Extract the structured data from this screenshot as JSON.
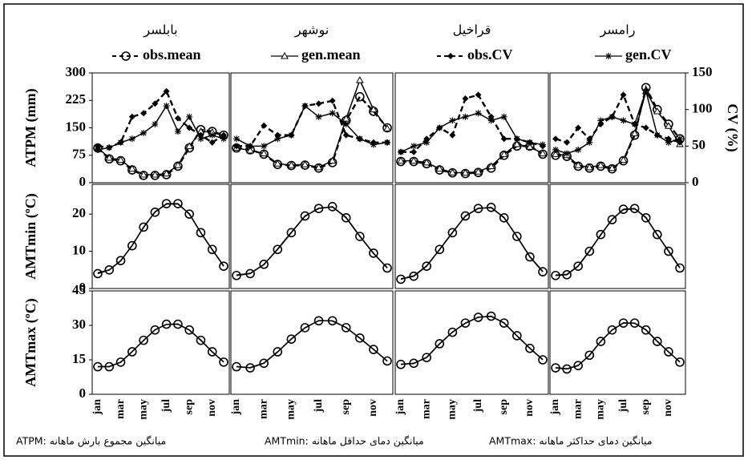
{
  "chart_data": [
    {
      "type": "line",
      "title": "بابلسر",
      "ylabel": "ATPM (mm)",
      "ylim": [
        0,
        300
      ],
      "yticks": [
        0,
        75,
        150,
        225,
        300
      ],
      "y2lim": [
        0,
        150
      ],
      "series": [
        {
          "name": "obs.mean",
          "color": "#000000",
          "marker": "circle",
          "dash": true,
          "values": [
            95,
            65,
            60,
            35,
            20,
            20,
            22,
            45,
            95,
            145,
            140,
            130
          ]
        },
        {
          "name": "gen.mean",
          "color": "#000000",
          "marker": "triangle",
          "dash": false,
          "values": [
            95,
            68,
            62,
            38,
            22,
            22,
            25,
            48,
            100,
            140,
            138,
            128
          ]
        },
        {
          "name": "obs.CV",
          "color": "#000000",
          "marker": "diamond",
          "dash": true,
          "axis": "y2",
          "values": [
            50,
            48,
            55,
            90,
            95,
            108,
            125,
            88,
            75,
            65,
            55,
            65
          ]
        },
        {
          "name": "gen.CV",
          "color": "#000000",
          "marker": "star",
          "dash": false,
          "axis": "y2",
          "values": [
            45,
            48,
            55,
            60,
            68,
            80,
            105,
            70,
            90,
            60,
            65,
            60
          ]
        }
      ]
    },
    {
      "type": "line",
      "title": "نوشهر",
      "ylim": [
        0,
        300
      ],
      "y2lim": [
        0,
        150
      ],
      "series": [
        {
          "color": "#000000",
          "marker": "circle",
          "dash": true,
          "values": [
            95,
            90,
            78,
            50,
            47,
            48,
            40,
            55,
            170,
            235,
            195,
            150
          ]
        },
        {
          "color": "#000000",
          "marker": "triangle",
          "dash": false,
          "values": [
            95,
            88,
            80,
            52,
            48,
            50,
            42,
            60,
            175,
            280,
            200,
            148
          ]
        },
        {
          "color": "#000000",
          "marker": "diamond",
          "dash": true,
          "axis": "y2",
          "values": [
            50,
            50,
            78,
            65,
            65,
            105,
            108,
            112,
            65,
            60,
            55,
            55
          ]
        },
        {
          "color": "#000000",
          "marker": "star",
          "dash": false,
          "axis": "y2",
          "values": [
            60,
            50,
            50,
            60,
            65,
            105,
            90,
            95,
            80,
            60,
            52,
            55
          ]
        }
      ]
    },
    {
      "type": "line",
      "title": "قراخیل",
      "ylim": [
        0,
        300
      ],
      "y2lim": [
        0,
        150
      ],
      "series": [
        {
          "color": "#000000",
          "marker": "circle",
          "dash": true,
          "values": [
            58,
            58,
            52,
            35,
            27,
            25,
            28,
            40,
            75,
            100,
            100,
            78
          ]
        },
        {
          "color": "#000000",
          "marker": "triangle",
          "dash": false,
          "values": [
            60,
            60,
            55,
            38,
            28,
            27,
            30,
            45,
            78,
            105,
            98,
            80
          ]
        },
        {
          "color": "#000000",
          "marker": "diamond",
          "dash": true,
          "axis": "y2",
          "values": [
            42,
            42,
            60,
            75,
            65,
            115,
            120,
            90,
            60,
            60,
            55,
            50
          ]
        },
        {
          "color": "#000000",
          "marker": "star",
          "dash": false,
          "axis": "y2",
          "values": [
            42,
            50,
            55,
            75,
            85,
            90,
            95,
            85,
            90,
            60,
            55,
            52
          ]
        }
      ]
    },
    {
      "type": "line",
      "title": "رامسر",
      "y2label": "CV (%)",
      "ylim": [
        0,
        300
      ],
      "y2lim": [
        0,
        150
      ],
      "y2ticks": [
        0,
        50,
        100,
        150
      ],
      "series": [
        {
          "color": "#000000",
          "marker": "circle",
          "dash": true,
          "values": [
            75,
            72,
            45,
            40,
            45,
            38,
            60,
            130,
            260,
            200,
            160,
            120
          ]
        },
        {
          "color": "#000000",
          "marker": "triangle",
          "dash": false,
          "values": [
            78,
            75,
            48,
            42,
            48,
            40,
            62,
            135,
            250,
            195,
            155,
            105
          ]
        },
        {
          "color": "#000000",
          "marker": "diamond",
          "dash": true,
          "axis": "y2",
          "values": [
            60,
            55,
            75,
            60,
            80,
            90,
            120,
            80,
            75,
            65,
            60,
            55
          ]
        },
        {
          "color": "#000000",
          "marker": "star",
          "dash": false,
          "axis": "y2",
          "values": [
            45,
            40,
            45,
            55,
            85,
            90,
            85,
            80,
            125,
            65,
            55,
            60
          ]
        }
      ]
    },
    {
      "type": "line",
      "ylabel": "AMTmin (ºC)",
      "ylim": [
        0,
        28
      ],
      "yticks": [
        0,
        10,
        20
      ],
      "series": [
        {
          "color": "#000000",
          "marker": "circle",
          "values": [
            4,
            5,
            7.5,
            11.5,
            16.5,
            20.5,
            22.8,
            22.8,
            20,
            15,
            10.5,
            6
          ]
        },
        {
          "color": "#000000",
          "marker": "none",
          "values": [
            4.2,
            5,
            7.4,
            11.6,
            16.4,
            20.6,
            22.7,
            22.7,
            20.1,
            15,
            10.4,
            6.1
          ]
        }
      ]
    },
    {
      "type": "line",
      "ylim": [
        0,
        28
      ],
      "series": [
        {
          "color": "#000000",
          "marker": "circle",
          "values": [
            3.5,
            4,
            6.5,
            10.5,
            15,
            19.5,
            21.5,
            22,
            19,
            14,
            9.5,
            5.5
          ]
        },
        {
          "color": "#000000",
          "marker": "none",
          "values": [
            3.6,
            4.1,
            6.4,
            10.6,
            15.1,
            19.4,
            21.6,
            21.9,
            19.1,
            14.1,
            9.4,
            5.6
          ]
        }
      ]
    },
    {
      "type": "line",
      "ylim": [
        0,
        28
      ],
      "series": [
        {
          "color": "#000000",
          "marker": "circle",
          "values": [
            2.5,
            3.3,
            6,
            10.5,
            15,
            19.5,
            21.5,
            21.8,
            19,
            14,
            8.5,
            4.5
          ]
        },
        {
          "color": "#000000",
          "marker": "none",
          "values": [
            2.6,
            3.4,
            6.1,
            10.4,
            15.1,
            19.4,
            21.6,
            21.7,
            19.1,
            13.9,
            8.6,
            4.6
          ]
        }
      ]
    },
    {
      "type": "line",
      "ylim": [
        0,
        28
      ],
      "series": [
        {
          "color": "#000000",
          "marker": "circle",
          "values": [
            3.5,
            3.7,
            6,
            10,
            14.5,
            18.5,
            21.3,
            21.5,
            19,
            14.5,
            10,
            5.5
          ]
        },
        {
          "color": "#000000",
          "marker": "none",
          "values": [
            3.6,
            3.8,
            6.1,
            10.1,
            14.4,
            18.6,
            21.2,
            21.4,
            19.1,
            14.4,
            10.1,
            5.6
          ]
        }
      ]
    },
    {
      "type": "line",
      "ylabel": "AMTmax (ºC)",
      "ylim": [
        0,
        45
      ],
      "yticks": [
        0,
        15,
        30,
        45
      ],
      "categories": [
        "jan",
        null,
        "mar",
        null,
        "may",
        null,
        "jul",
        null,
        "sep",
        null,
        "nov",
        null
      ],
      "series": [
        {
          "color": "#000000",
          "marker": "circle",
          "values": [
            12,
            12,
            14,
            18.5,
            23.5,
            28,
            30.5,
            30.5,
            28,
            23.5,
            18.5,
            14
          ]
        },
        {
          "color": "#000000",
          "marker": "none",
          "values": [
            12.1,
            12.1,
            13.9,
            18.6,
            23.4,
            28.1,
            30.4,
            30.6,
            27.9,
            23.6,
            18.4,
            14.1
          ]
        }
      ]
    },
    {
      "type": "line",
      "ylim": [
        0,
        45
      ],
      "categories": [
        "jan",
        null,
        "mar",
        null,
        "may",
        null,
        "jul",
        null,
        "sep",
        null,
        "nov",
        null
      ],
      "series": [
        {
          "color": "#000000",
          "marker": "circle",
          "values": [
            12,
            11.5,
            13.5,
            18.5,
            24,
            29,
            32,
            32,
            29,
            24.5,
            19.5,
            14.5
          ]
        },
        {
          "color": "#000000",
          "marker": "none",
          "values": [
            12.1,
            11.6,
            13.6,
            18.4,
            24.1,
            28.9,
            32.1,
            31.9,
            29.1,
            24.4,
            19.6,
            14.4
          ]
        }
      ]
    },
    {
      "type": "line",
      "ylim": [
        0,
        45
      ],
      "categories": [
        "jan",
        null,
        "mar",
        null,
        "may",
        null,
        "jul",
        null,
        "sep",
        null,
        "nov",
        null
      ],
      "series": [
        {
          "color": "#000000",
          "marker": "circle",
          "values": [
            13,
            13.5,
            16,
            22,
            27,
            31,
            33.5,
            34,
            31,
            25.5,
            20,
            15
          ]
        },
        {
          "color": "#000000",
          "marker": "none",
          "values": [
            13.1,
            13.4,
            16.1,
            21.9,
            27.1,
            30.9,
            33.6,
            33.9,
            31.1,
            25.4,
            20.1,
            15.1
          ]
        }
      ]
    },
    {
      "type": "line",
      "ylim": [
        0,
        45
      ],
      "categories": [
        "jan",
        null,
        "mar",
        null,
        "may",
        null,
        "jul",
        null,
        "sep",
        null,
        "nov",
        null
      ],
      "series": [
        {
          "color": "#000000",
          "marker": "circle",
          "values": [
            11.5,
            11,
            12.5,
            17,
            23,
            28,
            31,
            31,
            28,
            23,
            18.5,
            14
          ]
        },
        {
          "color": "#000000",
          "marker": "none",
          "values": [
            11.6,
            11.1,
            12.6,
            16.9,
            23.1,
            27.9,
            31.1,
            30.9,
            28.1,
            23.1,
            18.4,
            14.1
          ]
        }
      ]
    }
  ],
  "caption": [
    "ATPM: میانگین مجموع بارش ماهانه",
    "AMTmin: میانگین دمای حداقل ماهانه",
    "AMTmax: میانگین دمای حداکثر ماهانه"
  ]
}
